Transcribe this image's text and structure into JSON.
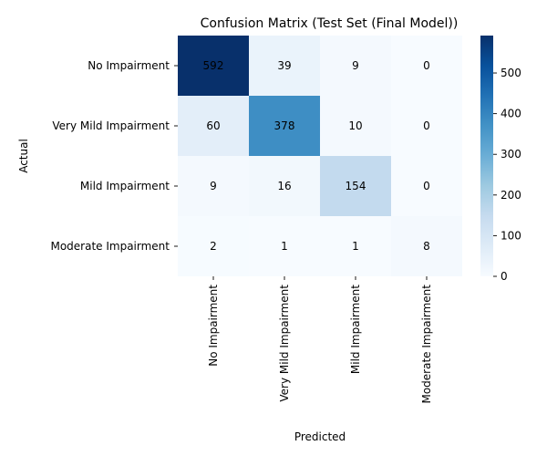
{
  "chart_data": {
    "type": "heatmap",
    "title": "Confusion Matrix (Test Set (Final Model))",
    "xlabel": "Predicted",
    "ylabel": "Actual",
    "x_categories": [
      "No Impairment",
      "Very Mild Impairment",
      "Mild Impairment",
      "Moderate Impairment"
    ],
    "y_categories": [
      "No Impairment",
      "Very Mild Impairment",
      "Mild Impairment",
      "Moderate Impairment"
    ],
    "values": [
      [
        592,
        39,
        9,
        0
      ],
      [
        60,
        378,
        10,
        0
      ],
      [
        9,
        16,
        154,
        0
      ],
      [
        2,
        1,
        1,
        8
      ]
    ],
    "colorbar": {
      "min": 0,
      "max": 592,
      "ticks": [
        0,
        100,
        200,
        300,
        400,
        500
      ],
      "colormap": "Blues"
    },
    "annotations": true
  }
}
